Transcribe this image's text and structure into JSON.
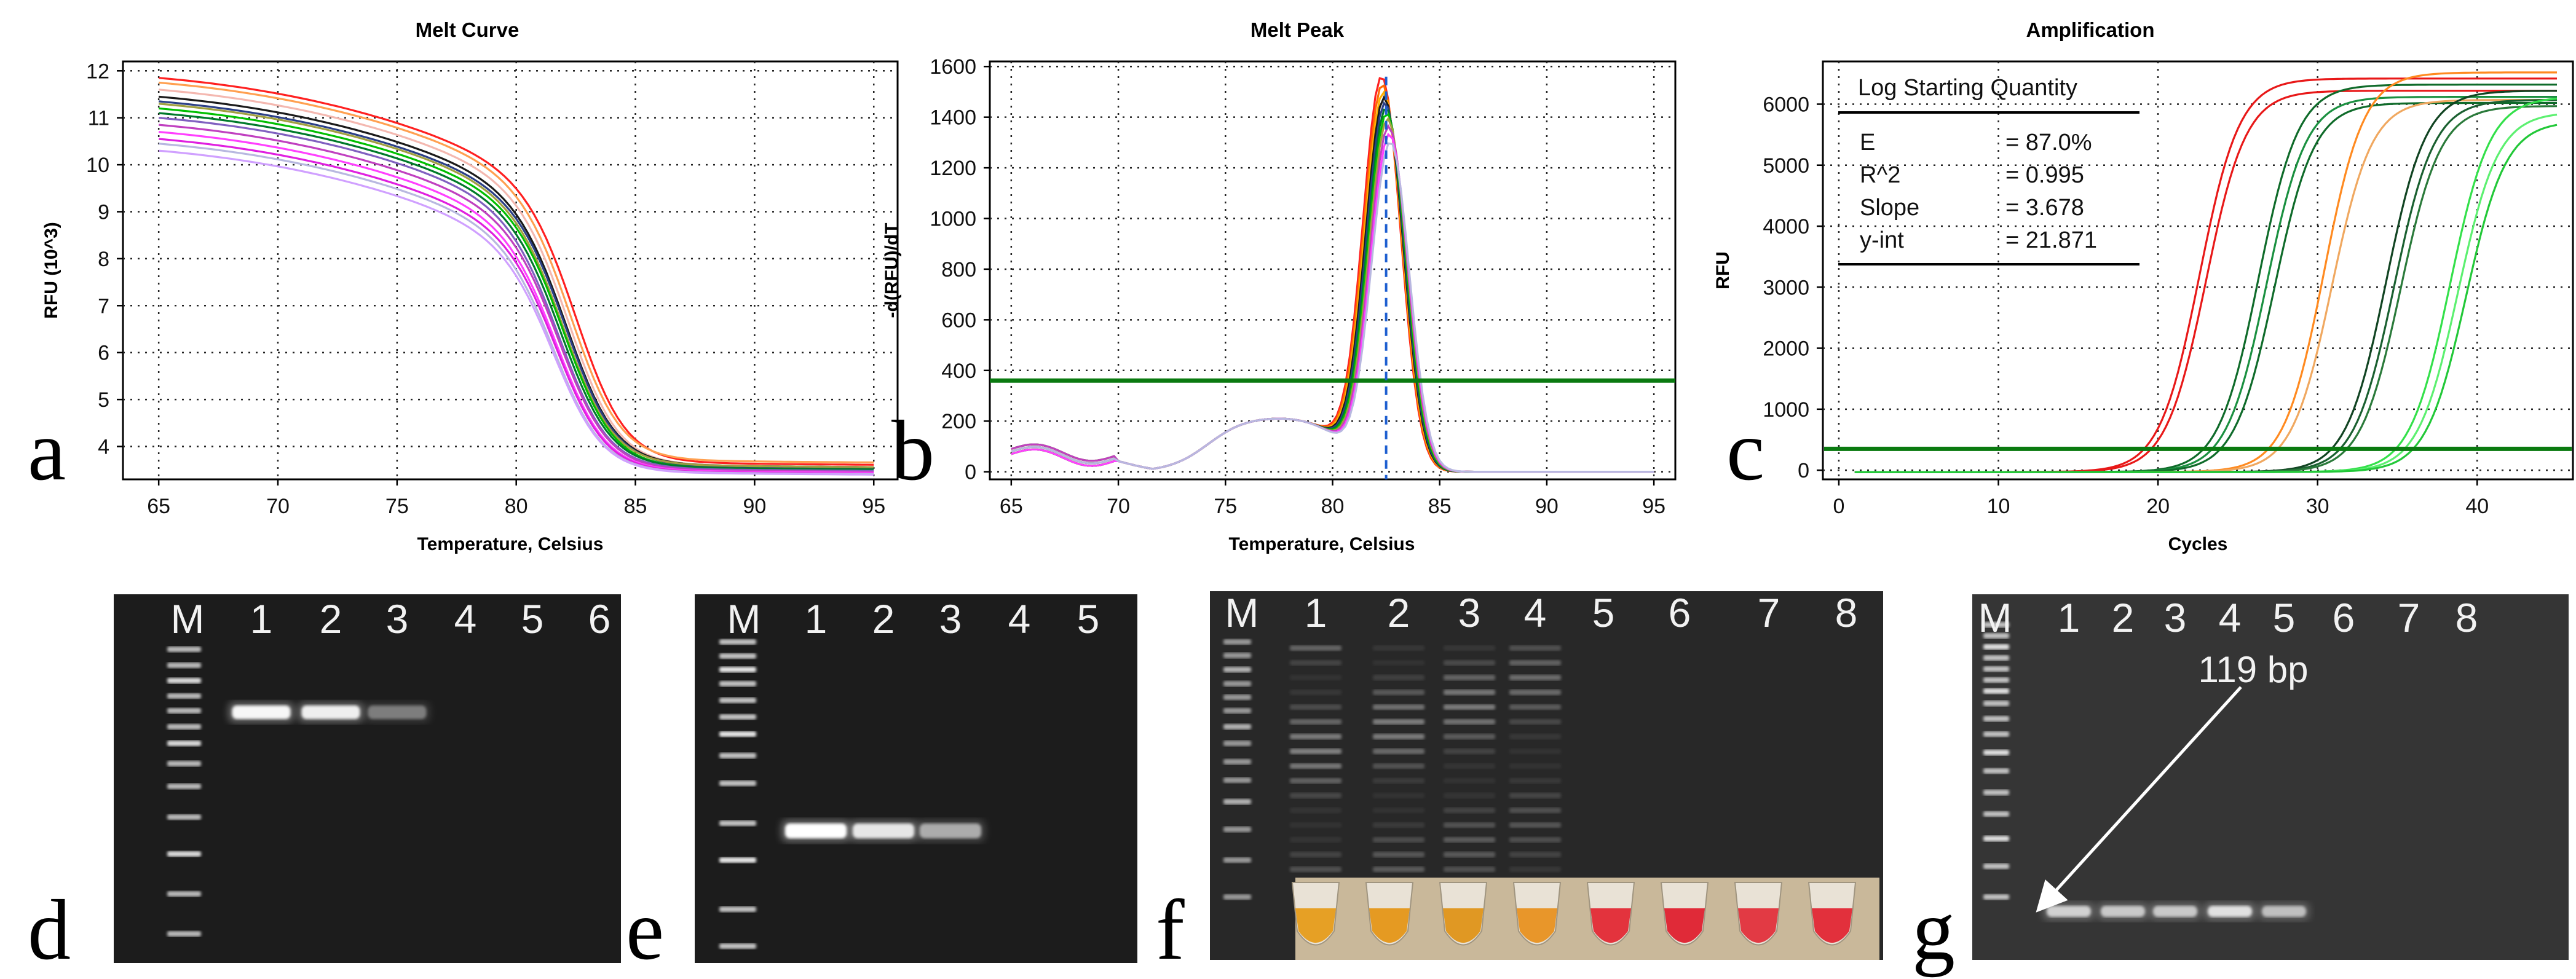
{
  "panel_letters": {
    "a": "a",
    "b": "b",
    "c": "c",
    "d": "d",
    "e": "e",
    "f": "f",
    "g": "g"
  },
  "chart_data": [
    {
      "id": "melt-curve",
      "type": "line",
      "title": "Melt Curve",
      "xlabel": "Temperature, Celsius",
      "ylabel": "RFU (10^3)",
      "xlim": [
        63.5,
        96
      ],
      "ylim": [
        3.3,
        12.2
      ],
      "xticks": [
        65,
        70,
        75,
        80,
        85,
        90,
        95
      ],
      "yticks": [
        4,
        5,
        6,
        7,
        8,
        9,
        10,
        11,
        12
      ],
      "grid": true,
      "series": [
        {
          "name": "s1",
          "color": "#ff2020",
          "start": 11.85,
          "end": 3.65,
          "tm": 82.7
        },
        {
          "name": "s2",
          "color": "#ffa050",
          "start": 11.75,
          "end": 3.7,
          "tm": 82.5
        },
        {
          "name": "s3",
          "color": "#f4b8b0",
          "start": 11.6,
          "end": 3.6,
          "tm": 82.4
        },
        {
          "name": "s4",
          "color": "#1a1a1a",
          "start": 11.45,
          "end": 3.6,
          "tm": 82.3
        },
        {
          "name": "s5",
          "color": "#2b3f86",
          "start": 11.35,
          "end": 3.58,
          "tm": 82.3
        },
        {
          "name": "s6",
          "color": "#a0a040",
          "start": 11.3,
          "end": 3.6,
          "tm": 82.2
        },
        {
          "name": "s7",
          "color": "#00c000",
          "start": 11.2,
          "end": 3.55,
          "tm": 82.2
        },
        {
          "name": "s8",
          "color": "#007a2a",
          "start": 11.1,
          "end": 3.55,
          "tm": 82.1
        },
        {
          "name": "s9",
          "color": "#8060c0",
          "start": 11.0,
          "end": 3.52,
          "tm": 82.0
        },
        {
          "name": "s10",
          "color": "#c040c0",
          "start": 10.85,
          "end": 3.5,
          "tm": 82.0
        },
        {
          "name": "s11",
          "color": "#ff40ff",
          "start": 10.7,
          "end": 3.48,
          "tm": 81.9
        },
        {
          "name": "s12",
          "color": "#e020e0",
          "start": 10.55,
          "end": 3.46,
          "tm": 81.9
        },
        {
          "name": "s13",
          "color": "#b8b8e0",
          "start": 10.45,
          "end": 3.45,
          "tm": 81.8
        },
        {
          "name": "s14",
          "color": "#d0a0ff",
          "start": 10.3,
          "end": 3.44,
          "tm": 81.8
        }
      ]
    },
    {
      "id": "melt-peak",
      "type": "line",
      "title": "Melt Peak",
      "xlabel": "Temperature, Celsius",
      "ylabel": "-d(RFU)/dT",
      "xlim": [
        64,
        96
      ],
      "ylim": [
        -30,
        1620
      ],
      "xticks": [
        65,
        70,
        75,
        80,
        85,
        90,
        95
      ],
      "yticks": [
        0,
        200,
        400,
        600,
        800,
        1000,
        1200,
        1400,
        1600
      ],
      "grid": true,
      "threshold": 360,
      "peak_temperature": 82.5,
      "series": [
        {
          "name": "s1",
          "color": "#ff2020",
          "peak": 1540
        },
        {
          "name": "s2",
          "color": "#ff6a00",
          "peak": 1510
        },
        {
          "name": "s3",
          "color": "#ffb000",
          "peak": 1480
        },
        {
          "name": "s4",
          "color": "#1a1a1a",
          "peak": 1460
        },
        {
          "name": "s5",
          "color": "#2b3f86",
          "peak": 1440
        },
        {
          "name": "s6",
          "color": "#007a2a",
          "peak": 1420
        },
        {
          "name": "s7",
          "color": "#00c000",
          "peak": 1400
        },
        {
          "name": "s8",
          "color": "#a0a040",
          "peak": 1380
        },
        {
          "name": "s9",
          "color": "#c040c0",
          "peak": 1350
        },
        {
          "name": "s10",
          "color": "#ff40ff",
          "peak": 1320
        },
        {
          "name": "s11",
          "color": "#b8b8e0",
          "peak": 1290
        }
      ]
    },
    {
      "id": "amplification",
      "type": "line",
      "title": "Amplification",
      "xlabel": "Cycles",
      "ylabel": "RFU",
      "xlim": [
        -1,
        46
      ],
      "ylim": [
        -150,
        6700
      ],
      "xticks": [
        0,
        10,
        20,
        30,
        40
      ],
      "yticks": [
        0,
        1000,
        2000,
        3000,
        4000,
        5000,
        6000
      ],
      "grid": true,
      "threshold": 350,
      "stats_title": "Log Starting Quantity",
      "stats": [
        {
          "label": "E",
          "value": "= 87.0%"
        },
        {
          "label": "R^2",
          "value": "= 0.995"
        },
        {
          "label": "Slope",
          "value": "= 3.678"
        },
        {
          "label": "y-int",
          "value": "= 21.871"
        }
      ],
      "series": [
        {
          "name": "r1",
          "color": "#e81818",
          "ct": 22.6,
          "plateau": 6450
        },
        {
          "name": "r2",
          "color": "#e81818",
          "ct": 23.0,
          "plateau": 6250
        },
        {
          "name": "g1",
          "color": "#0f6b2a",
          "ct": 26.3,
          "plateau": 6350
        },
        {
          "name": "g2",
          "color": "#1a9040",
          "ct": 26.8,
          "plateau": 6150
        },
        {
          "name": "g3",
          "color": "#0f6b2a",
          "ct": 27.3,
          "plateau": 6050
        },
        {
          "name": "o1",
          "color": "#ff8a20",
          "ct": 30.4,
          "plateau": 6550
        },
        {
          "name": "o2",
          "color": "#f0a860",
          "ct": 30.9,
          "plateau": 6100
        },
        {
          "name": "d1",
          "color": "#114422",
          "ct": 34.3,
          "plateau": 6250
        },
        {
          "name": "d2",
          "color": "#1a6030",
          "ct": 34.8,
          "plateau": 6100
        },
        {
          "name": "d3",
          "color": "#2a7a3a",
          "ct": 35.2,
          "plateau": 6000
        },
        {
          "name": "l1",
          "color": "#33e04a",
          "ct": 38.3,
          "plateau": 6150
        },
        {
          "name": "l2",
          "color": "#5cf070",
          "ct": 38.8,
          "plateau": 5900
        },
        {
          "name": "l3",
          "color": "#22c838",
          "ct": 39.3,
          "plateau": 5750
        }
      ]
    }
  ],
  "gels": {
    "d": {
      "lanes": [
        "M",
        "1",
        "2",
        "3",
        "4",
        "5",
        "6"
      ],
      "band_intensity": [
        0.95,
        0.9,
        0.35,
        0,
        0,
        0
      ]
    },
    "e": {
      "lanes": [
        "M",
        "1",
        "2",
        "3",
        "4",
        "5"
      ],
      "band_intensity": [
        1.0,
        0.85,
        0.55,
        0,
        0
      ]
    },
    "f": {
      "lanes": [
        "M",
        "1",
        "2",
        "3",
        "4",
        "5",
        "6",
        "7",
        "8"
      ],
      "smear_intensity": [
        0.55,
        0.5,
        0.45,
        0.35,
        0,
        0,
        0,
        0
      ],
      "tube_colors": [
        "#e6a025",
        "#e59a22",
        "#e09823",
        "#e8962a",
        "#e3333d",
        "#e02a38",
        "#e23a44",
        "#e2303c"
      ],
      "tube_bg": "#c9b89a"
    },
    "g": {
      "lanes": [
        "M",
        "1",
        "2",
        "3",
        "4",
        "5",
        "6",
        "7",
        "8"
      ],
      "band_intensity": [
        0.7,
        0.65,
        0.65,
        0.8,
        0.6,
        0,
        0,
        0
      ],
      "annotation": "119 bp"
    }
  }
}
